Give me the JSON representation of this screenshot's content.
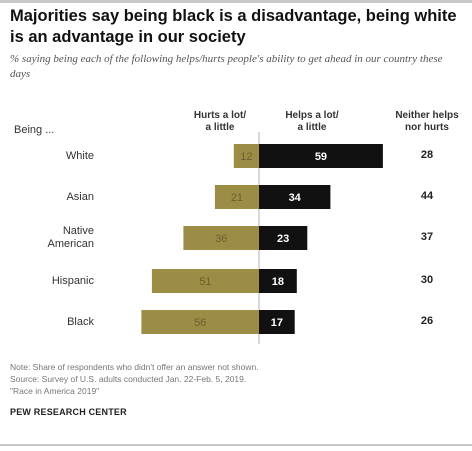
{
  "title": "Majorities say being black is a disadvantage, being white is an advantage in our society",
  "subtitle": "% saying being each of the following helps/hurts people's ability to get ahead in our country these days",
  "headers": {
    "row_label": "Being ...",
    "hurts": "Hurts a lot/\na little",
    "helps": "Helps a lot/\na little",
    "neither": "Neither helps\nnor hurts"
  },
  "chart_data": {
    "type": "bar",
    "orientation": "horizontal-diverging",
    "categories": [
      "White",
      "Asian",
      "Native\nAmerican",
      "Hispanic",
      "Black"
    ],
    "series": [
      {
        "name": "Hurts a lot/a little",
        "values": [
          12,
          21,
          36,
          51,
          56
        ]
      },
      {
        "name": "Helps a lot/a little",
        "values": [
          59,
          34,
          23,
          18,
          17
        ]
      }
    ],
    "neither": [
      28,
      44,
      37,
      30,
      26
    ]
  },
  "colors": {
    "hurts": "#9b8d45",
    "helps": "#111111",
    "hurts_label": "#6b6030",
    "helps_label": "#ffffff"
  },
  "note": "Note: Share of respondents who didn't offer an answer not shown.\nSource: Survey of U.S. adults conducted Jan. 22-Feb. 5, 2019.\n\"Race in America 2019\"",
  "brand": "PEW RESEARCH CENTER"
}
